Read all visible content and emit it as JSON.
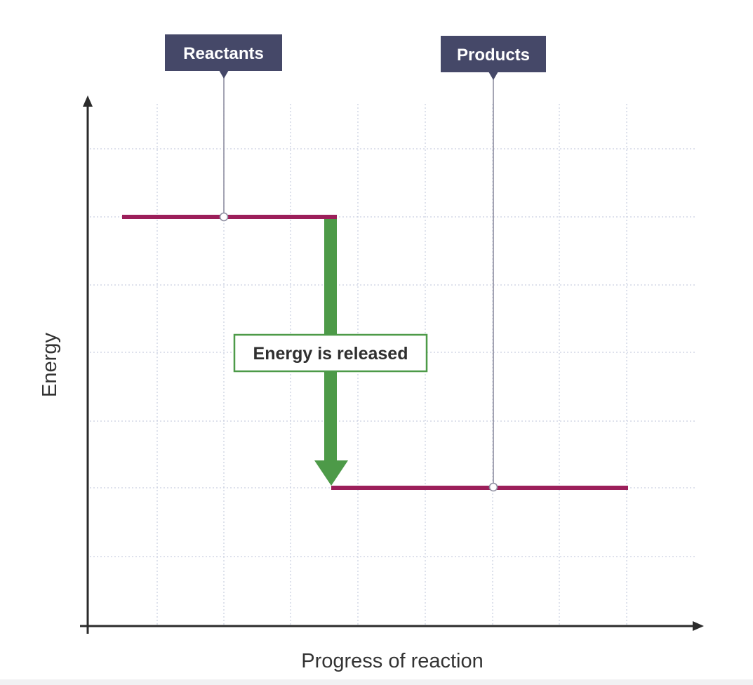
{
  "labels": {
    "reactants": "Reactants",
    "products": "Products",
    "energy_change": "Energy is released"
  },
  "axes": {
    "x_title": "Progress of reaction",
    "y_title": "Energy"
  },
  "colors": {
    "label_box": "#454868",
    "level_line": "#9c1f5a",
    "arrow": "#4d9a48",
    "grid": "#c9cfe0",
    "axis": "#2b2b2b"
  }
}
